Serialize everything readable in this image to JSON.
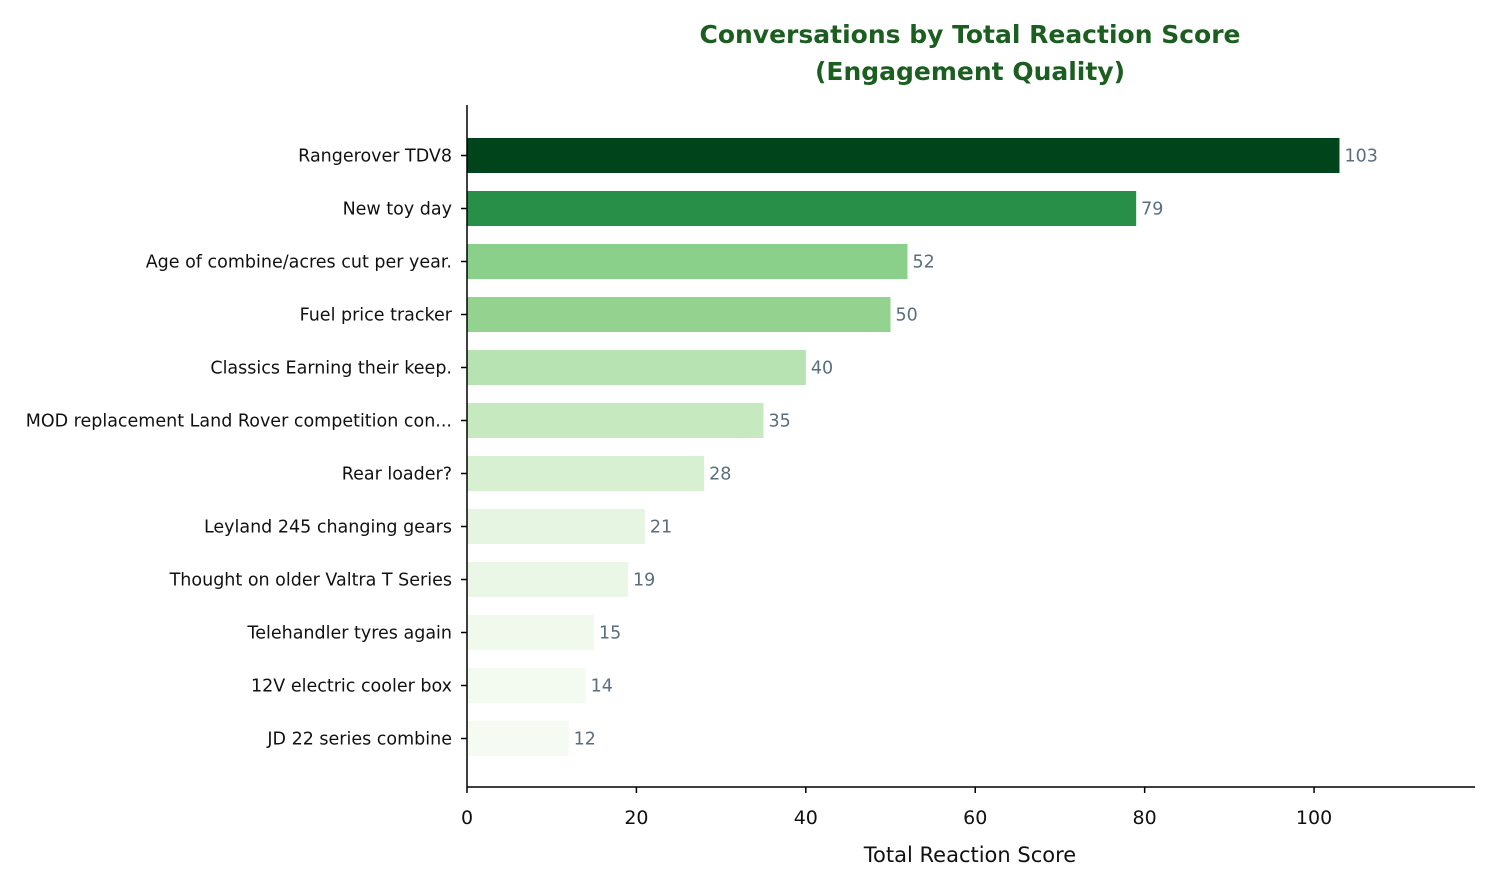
{
  "chart_data": {
    "type": "bar",
    "orientation": "horizontal",
    "title": [
      "Conversations by Total Reaction Score",
      "(Engagement Quality)"
    ],
    "xlabel": "Total Reaction Score",
    "ylabel": "",
    "xlim": [
      0,
      119
    ],
    "x_ticks": [
      0,
      20,
      40,
      60,
      80,
      100
    ],
    "grid": false,
    "legend": null,
    "categories": [
      "Rangerover TDV8",
      "New toy day",
      "Age of combine/acres cut per year.",
      "Fuel price tracker",
      "Classics Earning their keep.",
      "MOD replacement Land Rover competition con...",
      "Rear loader?",
      "Leyland 245 changing gears",
      "Thought on older Valtra T Series",
      "Telehandler tyres again",
      "12V electric cooler box",
      "JD 22 series combine"
    ],
    "values": [
      103,
      79,
      52,
      50,
      40,
      35,
      28,
      21,
      19,
      15,
      14,
      12
    ],
    "bar_colors": [
      "#00441b",
      "#278f48",
      "#8ad08a",
      "#93d38f",
      "#b7e2b1",
      "#c7e9c0",
      "#d8f0d2",
      "#e6f5e1",
      "#eaf7e6",
      "#f0f9ec",
      "#f3faf0",
      "#f5fbf3"
    ],
    "colors": {
      "title": "#1b5e20",
      "data_label": "#5a6e7f",
      "axis": "#000000"
    }
  }
}
